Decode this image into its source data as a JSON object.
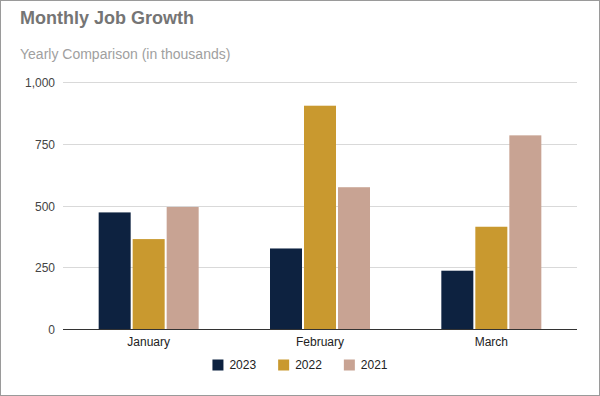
{
  "chart_data": {
    "type": "bar",
    "title": "Monthly Job Growth",
    "subtitle": "Yearly Comparison (in thousands)",
    "categories": [
      "January",
      "February",
      "March"
    ],
    "series": [
      {
        "name": "2023",
        "color": "#0d2240",
        "values": [
          472,
          326,
          236
        ]
      },
      {
        "name": "2022",
        "color": "#c9992f",
        "values": [
          364,
          904,
          414
        ]
      },
      {
        "name": "2021",
        "color": "#c8a393",
        "values": [
          494,
          574,
          784
        ]
      }
    ],
    "ylim": [
      0,
      1000
    ],
    "yticks": [
      0,
      250,
      500,
      750,
      {
        "value": 1000,
        "label": "1,000"
      }
    ],
    "grid": true,
    "legend": "bottom"
  }
}
